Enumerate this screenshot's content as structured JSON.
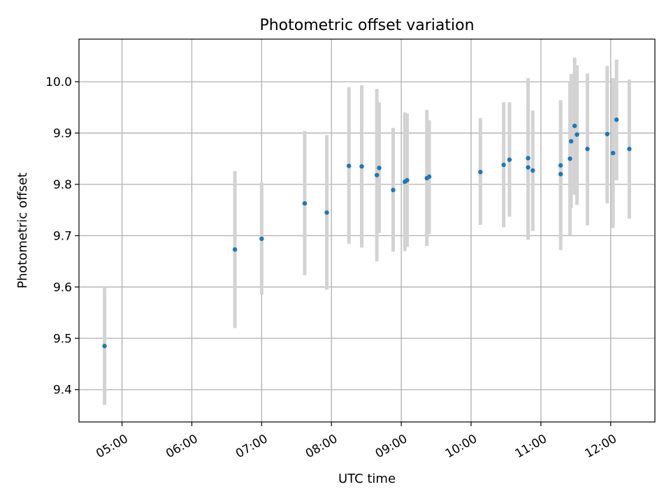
{
  "chart_data": {
    "type": "scatter",
    "title": "Photometric offset variation",
    "xlabel": "UTC time",
    "ylabel": "Photometric offset",
    "x_axis": {
      "kind": "time",
      "range": [
        "04:23",
        "12:38"
      ],
      "ticks": [
        "05:00",
        "06:00",
        "07:00",
        "08:00",
        "09:00",
        "10:00",
        "11:00",
        "12:00"
      ]
    },
    "y_axis": {
      "range": [
        9.337,
        10.083
      ],
      "ticks": [
        9.4,
        9.5,
        9.6,
        9.7,
        9.8,
        9.9,
        10.0
      ],
      "tick_labels": [
        "9.4",
        "9.5",
        "9.6",
        "9.7",
        "9.8",
        "9.9",
        "10.0"
      ]
    },
    "grid": true,
    "colors": {
      "marker": "#1f77b4",
      "errorbar": "#d3d3d3"
    },
    "points": [
      {
        "time": "04:45",
        "y": 9.485,
        "lo": 9.37,
        "hi": 9.6
      },
      {
        "time": "06:37",
        "y": 9.673,
        "lo": 9.52,
        "hi": 9.826
      },
      {
        "time": "07:00",
        "y": 9.694,
        "lo": 9.585,
        "hi": 9.803
      },
      {
        "time": "07:37",
        "y": 9.763,
        "lo": 9.623,
        "hi": 9.904
      },
      {
        "time": "07:56",
        "y": 9.745,
        "lo": 9.595,
        "hi": 9.896
      },
      {
        "time": "08:15",
        "y": 9.836,
        "lo": 9.684,
        "hi": 9.989
      },
      {
        "time": "08:26",
        "y": 9.835,
        "lo": 9.677,
        "hi": 9.993
      },
      {
        "time": "08:39",
        "y": 9.818,
        "lo": 9.65,
        "hi": 9.986
      },
      {
        "time": "08:41",
        "y": 9.832,
        "lo": 9.705,
        "hi": 9.96
      },
      {
        "time": "08:53",
        "y": 9.789,
        "lo": 9.669,
        "hi": 9.91
      },
      {
        "time": "09:03",
        "y": 9.805,
        "lo": 9.67,
        "hi": 9.94
      },
      {
        "time": "09:05",
        "y": 9.808,
        "lo": 9.678,
        "hi": 9.938
      },
      {
        "time": "09:22",
        "y": 9.812,
        "lo": 9.68,
        "hi": 9.945
      },
      {
        "time": "09:24",
        "y": 9.815,
        "lo": 9.703,
        "hi": 9.925
      },
      {
        "time": "10:08",
        "y": 9.824,
        "lo": 9.721,
        "hi": 9.929
      },
      {
        "time": "10:28",
        "y": 9.838,
        "lo": 9.716,
        "hi": 9.96
      },
      {
        "time": "10:33",
        "y": 9.848,
        "lo": 9.737,
        "hi": 9.96
      },
      {
        "time": "10:49",
        "y": 9.851,
        "lo": 9.692,
        "hi": 10.007
      },
      {
        "time": "10:49",
        "y": 9.833,
        "lo": 9.71,
        "hi": 9.96
      },
      {
        "time": "10:53",
        "y": 9.827,
        "lo": 9.709,
        "hi": 9.944
      },
      {
        "time": "11:17",
        "y": 9.837,
        "lo": 9.71,
        "hi": 9.964
      },
      {
        "time": "11:17",
        "y": 9.82,
        "lo": 9.672,
        "hi": 9.96
      },
      {
        "time": "11:25",
        "y": 9.85,
        "lo": 9.7,
        "hi": 10.0
      },
      {
        "time": "11:26",
        "y": 9.884,
        "lo": 9.754,
        "hi": 10.015
      },
      {
        "time": "11:29",
        "y": 9.914,
        "lo": 9.78,
        "hi": 10.047
      },
      {
        "time": "11:31",
        "y": 9.897,
        "lo": 9.76,
        "hi": 10.032
      },
      {
        "time": "11:40",
        "y": 9.869,
        "lo": 9.72,
        "hi": 10.016
      },
      {
        "time": "11:57",
        "y": 9.898,
        "lo": 9.763,
        "hi": 10.031
      },
      {
        "time": "12:02",
        "y": 9.861,
        "lo": 9.715,
        "hi": 10.007
      },
      {
        "time": "12:05",
        "y": 9.926,
        "lo": 9.808,
        "hi": 10.043
      },
      {
        "time": "12:16",
        "y": 9.869,
        "lo": 9.733,
        "hi": 10.004
      }
    ]
  }
}
